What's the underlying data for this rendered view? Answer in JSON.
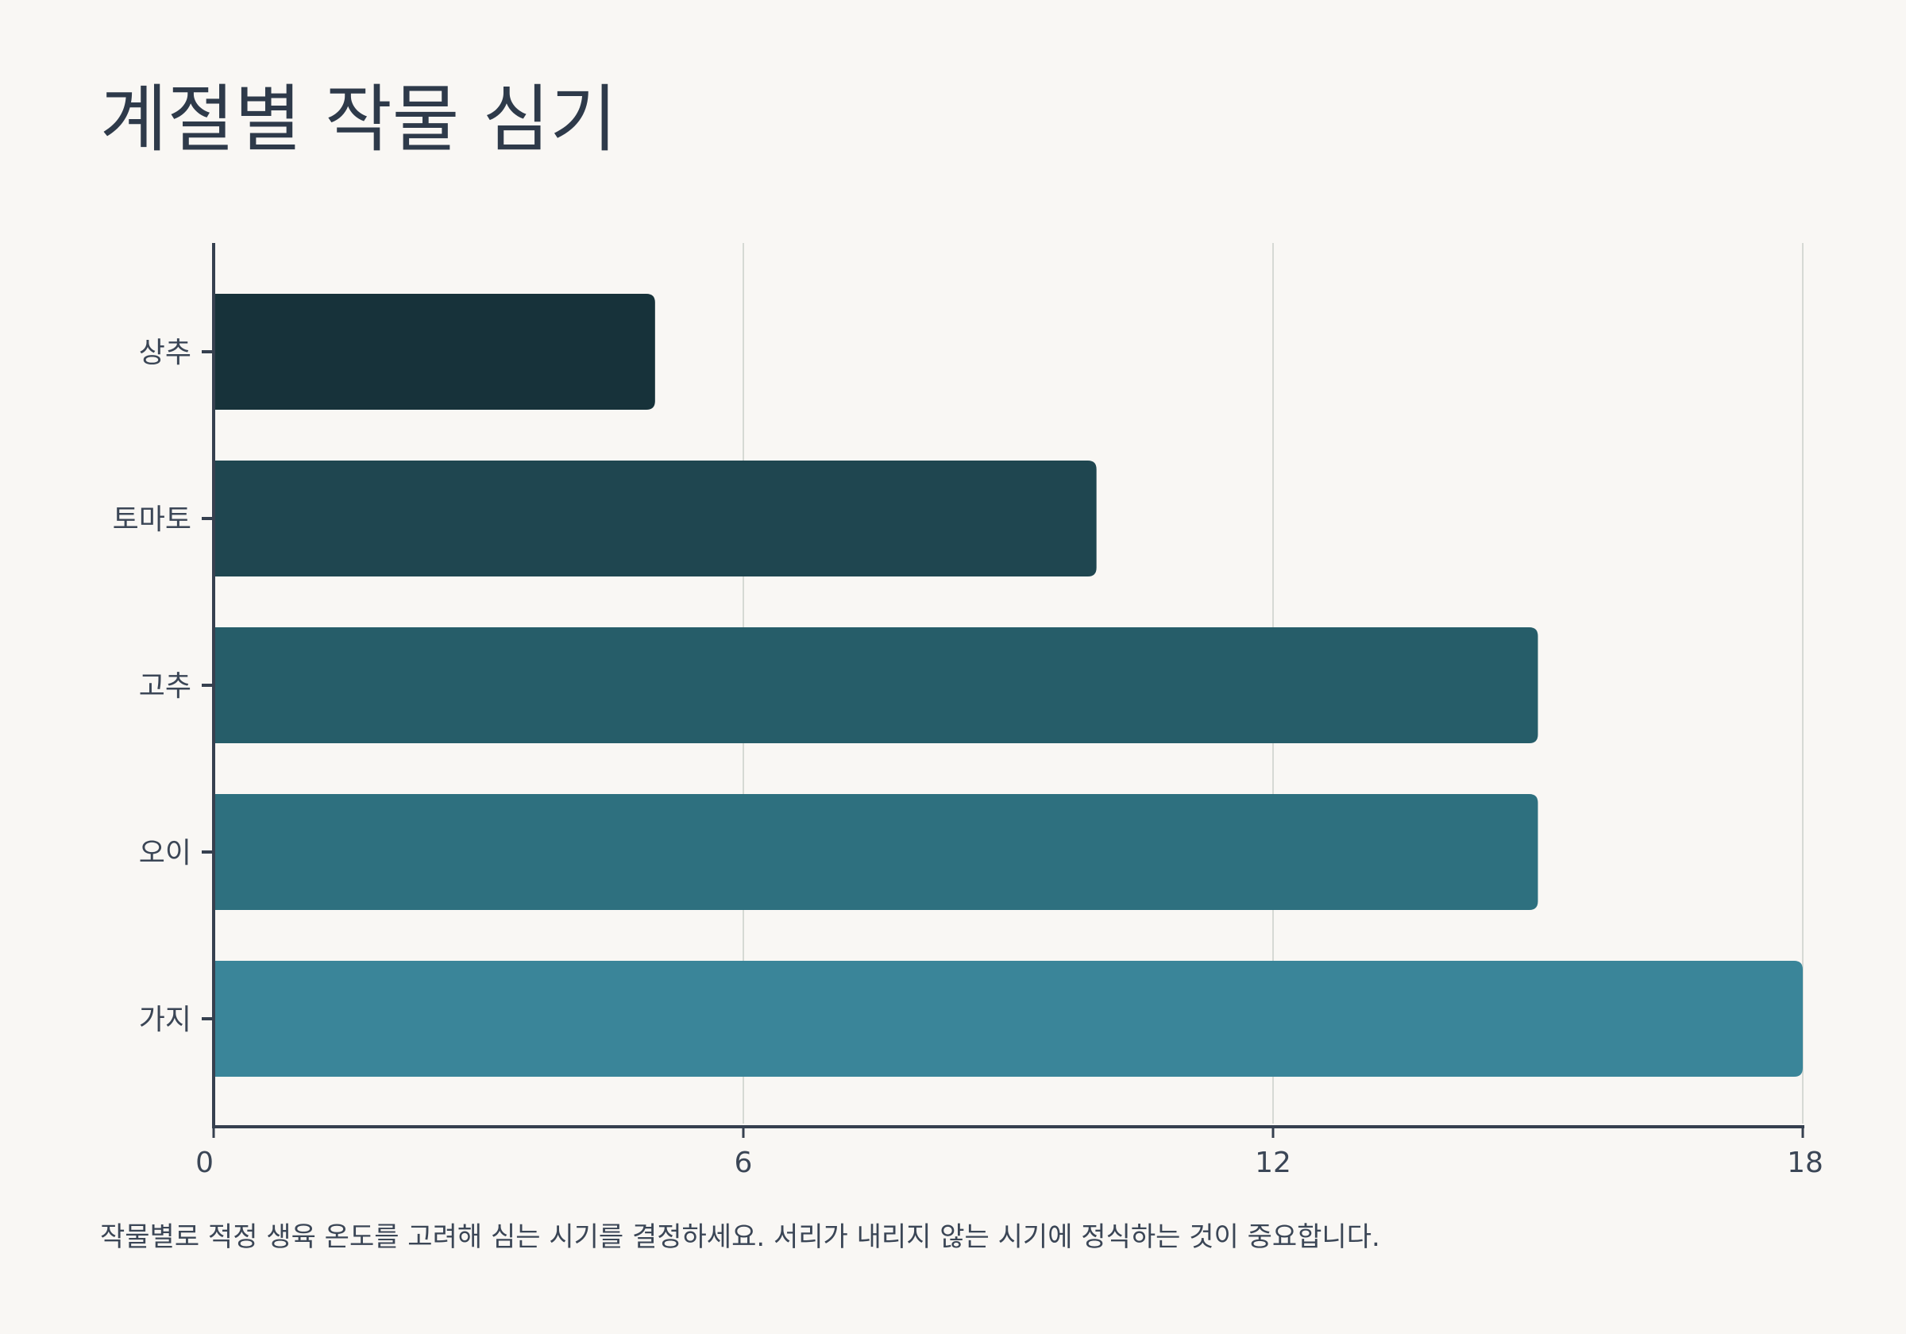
{
  "chart_data": {
    "type": "bar",
    "orientation": "horizontal",
    "title": "계절별 작물 심기",
    "categories": [
      "상추",
      "토마토",
      "고추",
      "오이",
      "가지"
    ],
    "values": [
      5,
      10,
      15,
      15,
      18
    ],
    "colors": [
      "#17323a",
      "#1f4650",
      "#265d69",
      "#2e707f",
      "#3a8599"
    ],
    "xlim": [
      0,
      18
    ],
    "xticks": [
      0,
      6,
      12,
      18
    ],
    "grid": true,
    "note": "작물별로 적정 생육 온도를 고려해 심는 시기를 결정하세요. 서리가 내리지 않는 시기에 정식하는 것이 중요합니다."
  }
}
